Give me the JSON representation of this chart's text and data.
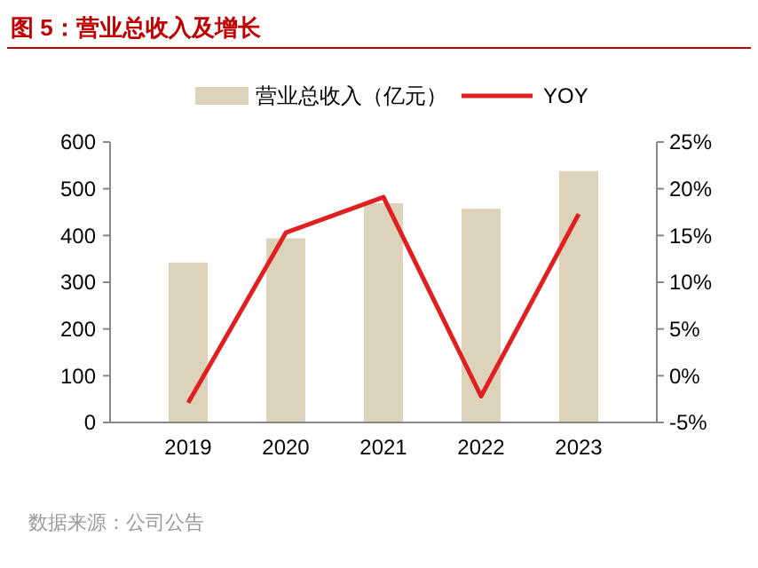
{
  "chart_data": {
    "type": "bar",
    "title": "图 5：营业总收入及增长",
    "categories": [
      "2019",
      "2020",
      "2021",
      "2022",
      "2023"
    ],
    "series": [
      {
        "name": "营业总收入（亿元）",
        "color": "#ddd3bb",
        "values": [
          342,
          394,
          469,
          457,
          538
        ]
      },
      {
        "name": "YOY",
        "type": "line",
        "axis": "y2",
        "color": "#e02020",
        "values": [
          -2.9,
          15.3,
          19.1,
          -2.2,
          17.3
        ]
      }
    ],
    "ylim": [
      0,
      600
    ],
    "yticks": [
      0,
      100,
      200,
      300,
      400,
      500,
      600
    ],
    "y2lim": [
      -5,
      25
    ],
    "y2ticks": [
      {
        "value": -5,
        "label": "-5%"
      },
      {
        "value": 0,
        "label": "0%"
      },
      {
        "value": 5,
        "label": "5%"
      },
      {
        "value": 10,
        "label": "10%"
      },
      {
        "value": 15,
        "label": "15%"
      },
      {
        "value": 20,
        "label": "20%"
      },
      {
        "value": 25,
        "label": "25%"
      }
    ],
    "legend": "top",
    "grid": false,
    "annotations": [
      "数据来源：公司公告"
    ]
  }
}
